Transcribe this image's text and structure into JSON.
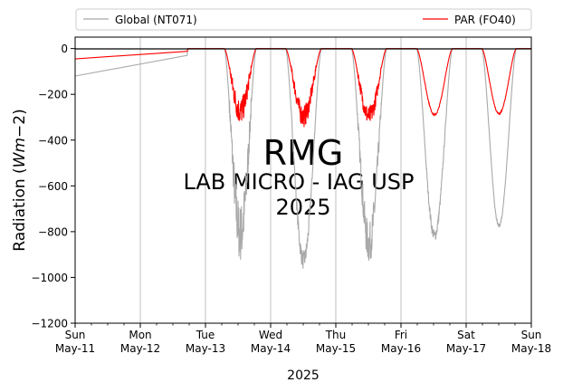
{
  "chart_data": {
    "type": "line",
    "xlabel": "2025",
    "ylabel_main": "Radiation (",
    "ylabel_math": "Wm",
    "ylabel_tail": "−2)",
    "ylim": [
      -1200,
      50
    ],
    "yticks": [
      0,
      -200,
      -400,
      -600,
      -800,
      -1000,
      -1200
    ],
    "ytick_labels": [
      "0",
      "−200",
      "−400",
      "−600",
      "−800",
      "−1000",
      "−1200"
    ],
    "xlim_days": [
      "2025-05-11",
      "2025-05-18"
    ],
    "xticks": [
      {
        "day": "Sun",
        "date": "May-11"
      },
      {
        "day": "Mon",
        "date": "May-12"
      },
      {
        "day": "Tue",
        "date": "May-13"
      },
      {
        "day": "Wed",
        "date": "May-14"
      },
      {
        "day": "Thu",
        "date": "May-15"
      },
      {
        "day": "Fri",
        "date": "May-16"
      },
      {
        "day": "Sat",
        "date": "May-17"
      },
      {
        "day": "Sun",
        "date": "May-18"
      }
    ],
    "grid": "vertical",
    "legend_placement": "top",
    "watermark": [
      "RMG",
      "LAB MICRO - IAG USP",
      "2025"
    ],
    "series": [
      {
        "name": "Global (NT071)",
        "color": "#a9a9a9",
        "baseline": [
          [
            0.0,
            -120
          ],
          [
            1.72,
            -30
          ],
          [
            1.73,
            0
          ]
        ],
        "days": [
          {
            "start": 2.29,
            "end": 2.78,
            "peak": -820,
            "noise": 130
          },
          {
            "start": 3.23,
            "end": 3.78,
            "peak": -930,
            "noise": 40
          },
          {
            "start": 4.24,
            "end": 4.78,
            "peak": -860,
            "noise": 90
          },
          {
            "start": 5.24,
            "end": 5.79,
            "peak": -820,
            "noise": 25
          },
          {
            "start": 6.24,
            "end": 6.77,
            "peak": -775,
            "noise": 8
          }
        ]
      },
      {
        "name": "PAR (FO40)",
        "color": "#ff0000",
        "baseline": [
          [
            0.0,
            -45
          ],
          [
            1.72,
            -12
          ],
          [
            1.73,
            0
          ]
        ],
        "days": [
          {
            "start": 2.29,
            "end": 2.78,
            "peak": -280,
            "noise": 60
          },
          {
            "start": 3.23,
            "end": 3.78,
            "peak": -300,
            "noise": 50
          },
          {
            "start": 4.24,
            "end": 4.78,
            "peak": -300,
            "noise": 45
          },
          {
            "start": 5.24,
            "end": 5.79,
            "peak": -290,
            "noise": 4
          },
          {
            "start": 6.24,
            "end": 6.77,
            "peak": -285,
            "noise": 3
          }
        ]
      }
    ]
  }
}
